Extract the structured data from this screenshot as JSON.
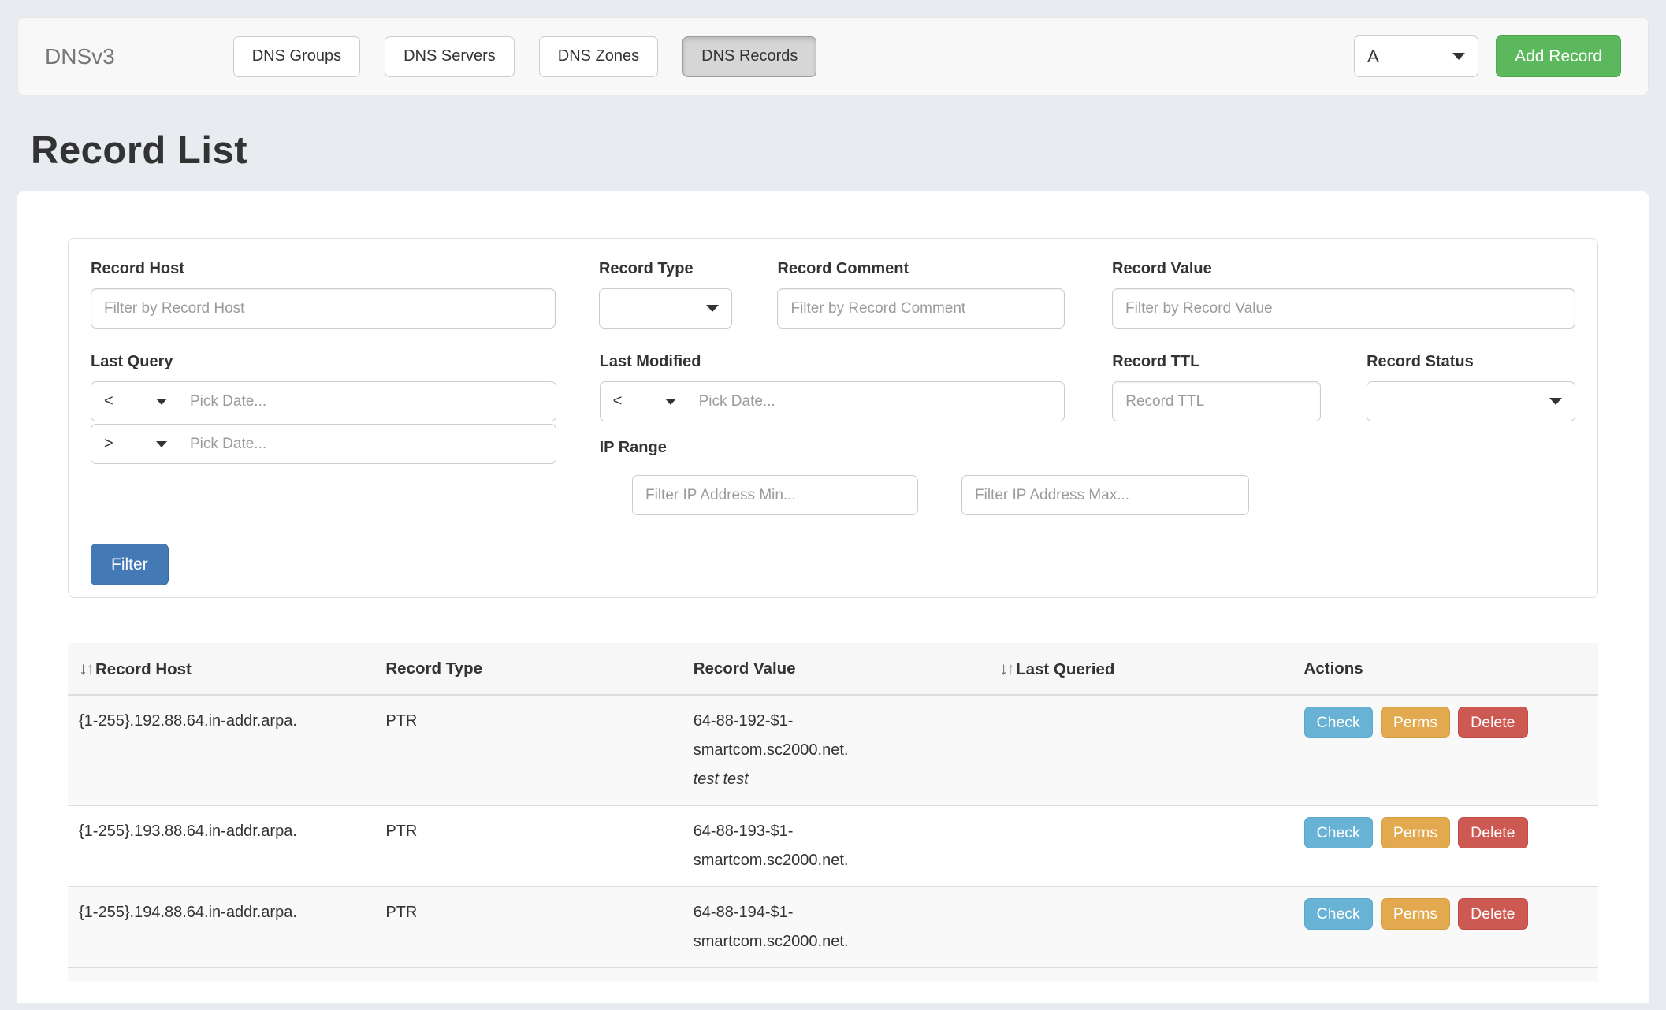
{
  "navbar": {
    "brand": "DNSv3",
    "tabs": [
      {
        "label": "DNS Groups",
        "active": false
      },
      {
        "label": "DNS Servers",
        "active": false
      },
      {
        "label": "DNS Zones",
        "active": false
      },
      {
        "label": "DNS Records",
        "active": true
      }
    ],
    "record_type_selected": "A",
    "add_button_label": "Add Record"
  },
  "page": {
    "title": "Record List"
  },
  "filters": {
    "record_host": {
      "label": "Record Host",
      "placeholder": "Filter by Record Host",
      "value": ""
    },
    "record_type": {
      "label": "Record Type",
      "value": ""
    },
    "record_comment": {
      "label": "Record Comment",
      "placeholder": "Filter by Record Comment",
      "value": ""
    },
    "record_value": {
      "label": "Record Value",
      "placeholder": "Filter by Record Value",
      "value": ""
    },
    "last_query": {
      "label": "Last Query",
      "operators": [
        "<",
        ">"
      ],
      "date_placeholder": "Pick Date...",
      "values": [
        "",
        ""
      ]
    },
    "last_modified": {
      "label": "Last Modified",
      "operator": "<",
      "date_placeholder": "Pick Date...",
      "value": ""
    },
    "record_ttl": {
      "label": "Record TTL",
      "placeholder": "Record TTL",
      "value": ""
    },
    "record_status": {
      "label": "Record Status",
      "value": ""
    },
    "ip_range": {
      "label": "IP Range",
      "min_placeholder": "Filter IP Address Min...",
      "max_placeholder": "Filter IP Address Max...",
      "min_value": "",
      "max_value": ""
    },
    "submit_label": "Filter"
  },
  "table": {
    "columns": [
      {
        "label": "Record Host",
        "sortable": true
      },
      {
        "label": "Record Type",
        "sortable": false
      },
      {
        "label": "Record Value",
        "sortable": false
      },
      {
        "label": "Last Queried",
        "sortable": true
      },
      {
        "label": "Actions",
        "sortable": false
      }
    ],
    "action_buttons": [
      "Check",
      "Perms",
      "Delete"
    ],
    "records": [
      {
        "host": "{1-255}.192.88.64.in-addr.arpa.",
        "type": "PTR",
        "value": "64-88-192-$1-smartcom.sc2000.net.",
        "comment": "test test",
        "last_queried": ""
      },
      {
        "host": "{1-255}.193.88.64.in-addr.arpa.",
        "type": "PTR",
        "value": "64-88-193-$1-smartcom.sc2000.net.",
        "comment": "",
        "last_queried": ""
      },
      {
        "host": "{1-255}.194.88.64.in-addr.arpa.",
        "type": "PTR",
        "value": "64-88-194-$1-smartcom.sc2000.net.",
        "comment": "",
        "last_queried": ""
      }
    ]
  },
  "colors": {
    "accent_primary": "#4379b4",
    "accent_success": "#5cb85c",
    "accent_info": "#68b3d5",
    "accent_warning": "#e3a94e",
    "accent_danger": "#cd5a52"
  }
}
